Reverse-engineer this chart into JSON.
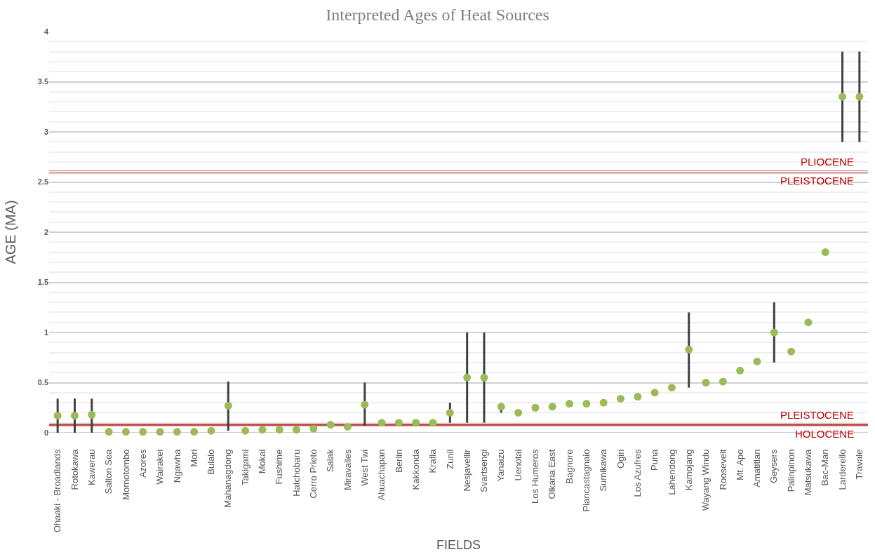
{
  "chart_data": {
    "type": "scatter",
    "title": "Interpreted Ages of Heat Sources",
    "xlabel": "FIELDS",
    "ylabel": "AGE (MA)",
    "categories": [
      "Ohaaki - Broadlands",
      "Rotokawa",
      "Kawerau",
      "Salton Sea",
      "Momotombo",
      "Azores",
      "Wairakei",
      "Ngawha",
      "Mori",
      "Bulalo",
      "Mahanagdong",
      "Takigami",
      "Mokai",
      "Fushime",
      "Hatchobaru",
      "Cerro Prieto",
      "Salak",
      "Miravalles",
      "West Twi",
      "Ahuachapan",
      "Berlin",
      "Kakkonda",
      "Krafla",
      "Zunil",
      "Nesjavellir",
      "Svartsengi",
      "Yanaizu",
      "Uenotai",
      "Los Humeros",
      "Olkaria East",
      "Bagnore",
      "Piancastagnaio",
      "Sumikawa",
      "Ogiri",
      "Los Azufres",
      "Puna",
      "Lahendong",
      "Kamojang",
      "Wayang Windu",
      "Roosevelt",
      "Mt. Apo",
      "Amatitlan",
      "Geysers",
      "Palinpinon",
      "Matsukawa",
      "Bac-Man",
      "Larderello",
      "Travale"
    ],
    "series": [
      {
        "color": "#9bbb59",
        "values": [
          0.17,
          0.17,
          0.18,
          0.01,
          0.01,
          0.01,
          0.01,
          0.01,
          0.01,
          0.02,
          0.27,
          0.02,
          0.03,
          0.03,
          0.03,
          0.04,
          0.08,
          0.06,
          0.28,
          0.1,
          0.1,
          0.1,
          0.1,
          0.2,
          0.55,
          0.55,
          0.26,
          0.2,
          0.25,
          0.26,
          0.29,
          0.29,
          0.3,
          0.34,
          0.36,
          0.4,
          0.45,
          0.83,
          0.5,
          0.51,
          0.62,
          0.71,
          1.0,
          0.81,
          1.1,
          1.8,
          3.35,
          3.35
        ],
        "errors": [
          [
            0,
            0.34
          ],
          [
            0,
            0.34
          ],
          [
            0,
            0.34
          ],
          null,
          null,
          null,
          null,
          null,
          null,
          null,
          [
            0.02,
            0.51
          ],
          null,
          null,
          null,
          null,
          null,
          null,
          null,
          [
            0.07,
            0.5
          ],
          null,
          null,
          null,
          null,
          [
            0.1,
            0.3
          ],
          [
            0.1,
            1.0
          ],
          [
            0.1,
            1.0
          ],
          [
            0.2,
            0.26
          ],
          null,
          null,
          null,
          null,
          null,
          null,
          null,
          null,
          null,
          null,
          [
            0.45,
            1.2
          ],
          null,
          null,
          null,
          null,
          [
            0.7,
            1.3
          ],
          null,
          null,
          null,
          [
            2.9,
            3.8
          ],
          [
            2.9,
            3.8
          ]
        ]
      }
    ],
    "marker": "circle",
    "ylim": [
      0,
      4
    ],
    "yticks": [
      0,
      0.5,
      1,
      1.5,
      2,
      2.5,
      3,
      3.5,
      4
    ],
    "grid": "y",
    "ref_lines": [
      {
        "axis": "y",
        "value": 2.6,
        "color": "#c0504d"
      },
      {
        "axis": "y",
        "value": 0.08,
        "color": "#c0504d"
      }
    ],
    "annotations": [
      "PLIOCENE",
      "PLEISTOCENE",
      "PLEISTOCENE",
      "HOLOCENE"
    ]
  }
}
